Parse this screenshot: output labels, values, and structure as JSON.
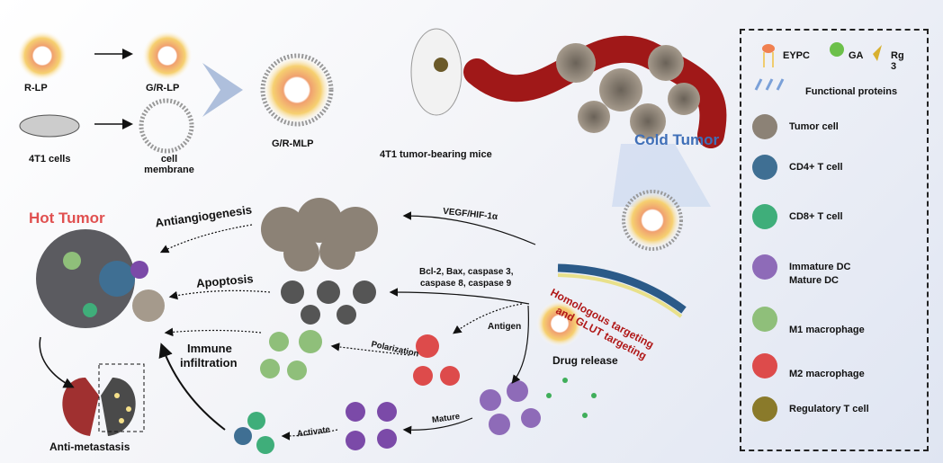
{
  "top": {
    "r_lp": "R-LP",
    "g_r_lp": "G/R-LP",
    "cells_4t1": "4T1 cells",
    "cell_membrane": "cell membrane",
    "g_r_mlp": "G/R-MLP",
    "mice": "4T1 tumor-bearing mice",
    "cold_tumor": "Cold Tumor"
  },
  "middle": {
    "hot_tumor": "Hot Tumor",
    "antiangiogenesis": "Antiangiogenesis",
    "vegf": "VEGF/HIF-1α",
    "apoptosis": "Apoptosis",
    "bcl_line1": "Bcl-2, Bax, caspase 3,",
    "bcl_line2": "caspase 8, caspase 9",
    "immune_line1": "Immune",
    "immune_line2": "infiltration",
    "antigen": "Antigen",
    "polarization": "Polarization",
    "mature": "Mature",
    "activate": "Activate",
    "anti_metastasis": "Anti-metastasis",
    "targeting_line1": "Homologous targeting",
    "targeting_line2": "and GLUT targeting",
    "drug_release": "Drug release"
  },
  "legend": {
    "eypc": "EYPC",
    "ga": "GA",
    "rg3": "Rg 3",
    "functional_proteins": "Functional proteins",
    "items": [
      {
        "label": "Tumor cell",
        "color": "#8c8276"
      },
      {
        "label": "CD4+ T cell",
        "color": "#3f6f93"
      },
      {
        "label": "CD8+ T cell",
        "color": "#3fae7a"
      },
      {
        "label": "Immature DC",
        "color": "#8e6bb8"
      },
      {
        "label": "Mature DC",
        "color": "#7b4aa8"
      },
      {
        "label": "M1 macrophage",
        "color": "#8fbf7a"
      },
      {
        "label": "M2 macrophage",
        "color": "#dd4b4b"
      },
      {
        "label": "Regulatory T cell",
        "color": "#8a7a2a"
      }
    ]
  },
  "colors": {
    "hot_tumor": "#e05050",
    "cold_tumor": "#3f6fb8",
    "targeting": "#b01818"
  }
}
